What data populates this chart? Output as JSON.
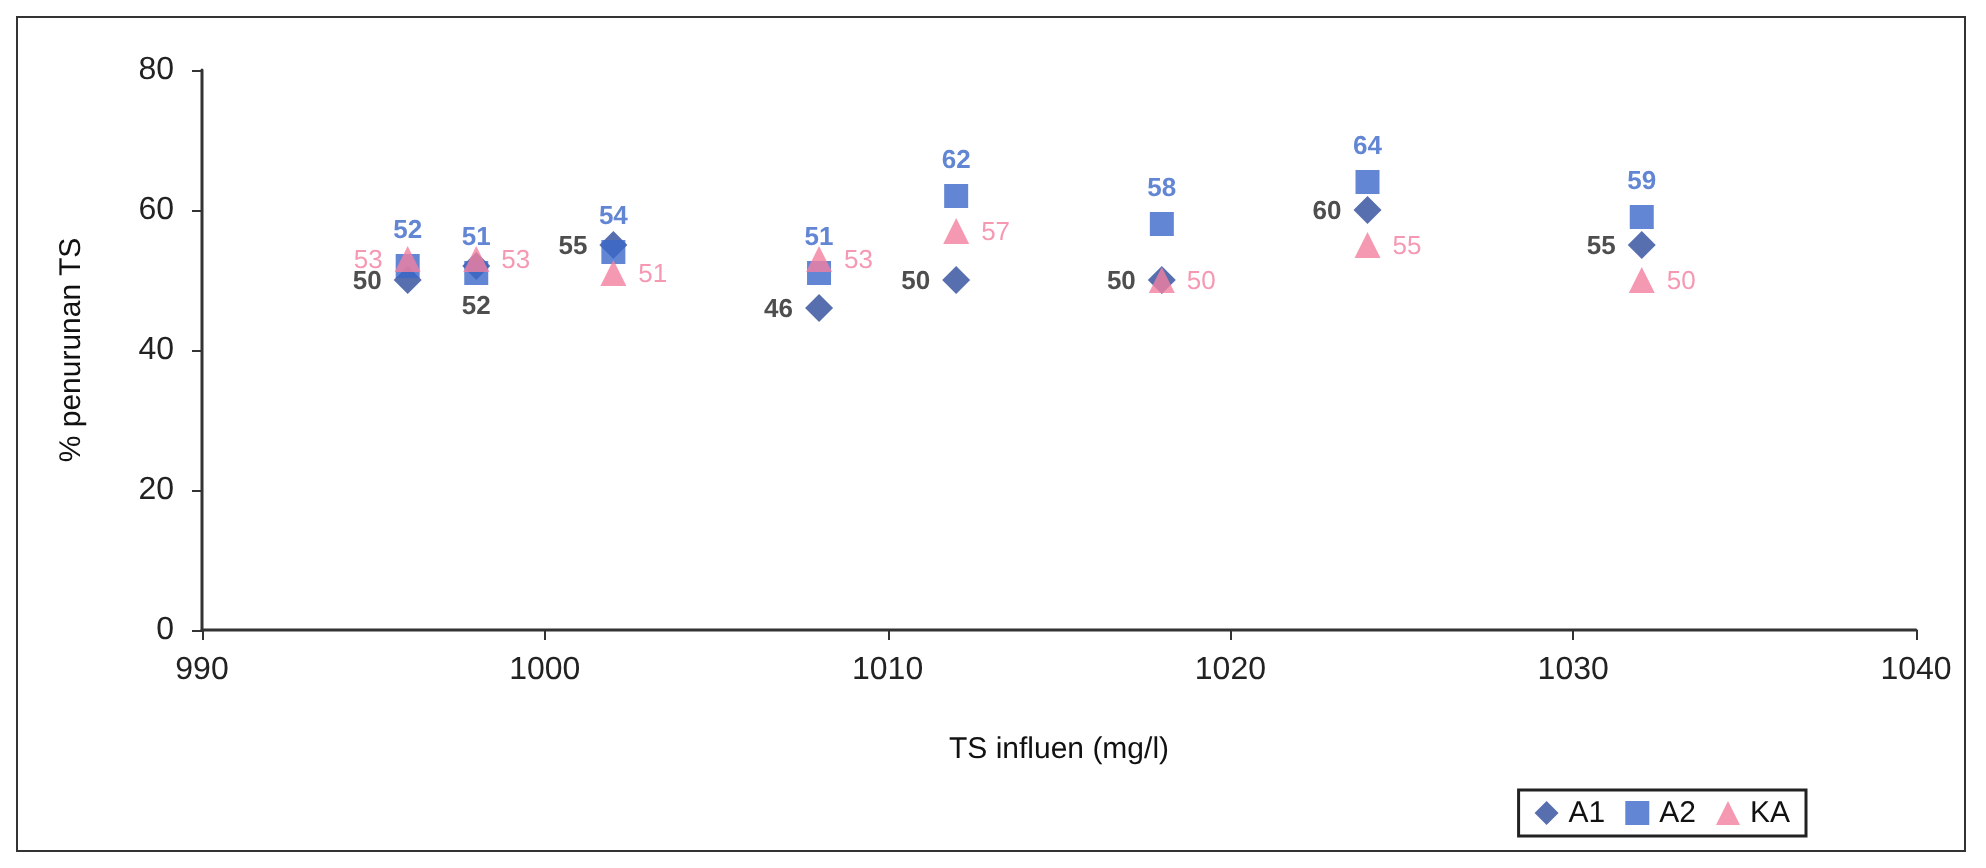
{
  "chart_data": {
    "type": "scatter",
    "xlabel": "TS influen (mg/l)",
    "ylabel": "% penurunan TS",
    "x": [
      996,
      998,
      1002,
      1008,
      1012,
      1018,
      1024,
      1032
    ],
    "series": [
      {
        "name": "A1",
        "color": "#2e4b9b",
        "marker": "diamond",
        "values": [
          50,
          52,
          55,
          46,
          50,
          50,
          60,
          55
        ]
      },
      {
        "name": "A2",
        "color": "#3b68c9",
        "marker": "square",
        "values": [
          52,
          51,
          54,
          51,
          62,
          58,
          64,
          59
        ]
      },
      {
        "name": "KA",
        "color": "#f27fa0",
        "marker": "triangle",
        "values": [
          53,
          53,
          51,
          53,
          57,
          50,
          55,
          50
        ]
      }
    ],
    "xlim": [
      990,
      1040
    ],
    "xticks": [
      990,
      1000,
      1010,
      1020,
      1030,
      1040
    ],
    "ylim": [
      0,
      80
    ],
    "yticks": [
      0,
      20,
      40,
      60,
      80
    ],
    "grid": false,
    "legend": "bottom right",
    "data_labels": true
  }
}
